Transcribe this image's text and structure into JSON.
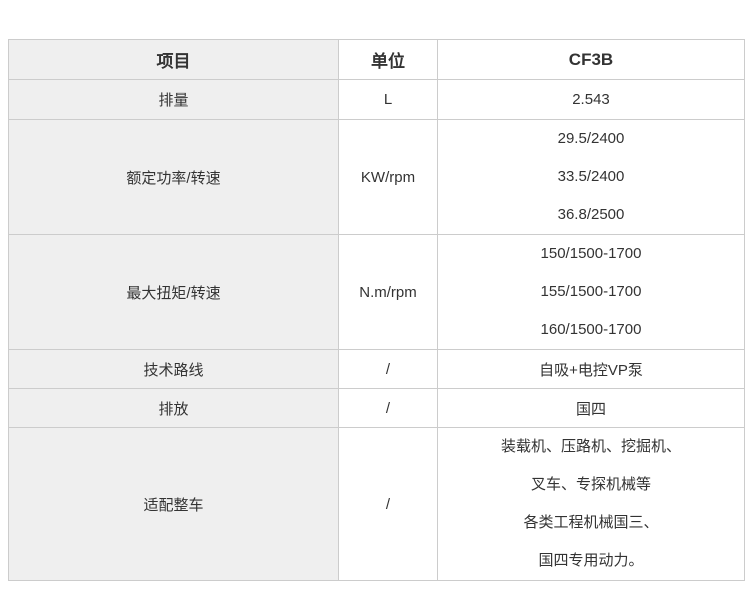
{
  "table": {
    "headers": {
      "item": "项目",
      "unit": "单位",
      "model": "CF3B"
    },
    "rows": [
      {
        "item": "排量",
        "unit": "L",
        "values": [
          "2.543"
        ]
      },
      {
        "item": "额定功率/转速",
        "unit": "KW/rpm",
        "values": [
          "29.5/2400",
          "33.5/2400",
          "36.8/2500"
        ]
      },
      {
        "item": "最大扭矩/转速",
        "unit": "N.m/rpm",
        "values": [
          "150/1500-1700",
          "155/1500-1700",
          "160/1500-1700"
        ]
      },
      {
        "item": "技术路线",
        "unit": "/",
        "values": [
          "自吸+电控VP泵"
        ]
      },
      {
        "item": "排放",
        "unit": "/",
        "values": [
          "国四"
        ]
      },
      {
        "item": "适配整车",
        "unit": "/",
        "values": [
          "装载机、压路机、挖掘机、",
          "叉车、专探机械等",
          "各类工程机械国三、",
          "国四专用动力。"
        ]
      }
    ],
    "colors": {
      "item_column_bg": "#efefef",
      "border": "#cccccc",
      "text": "#333333"
    }
  }
}
